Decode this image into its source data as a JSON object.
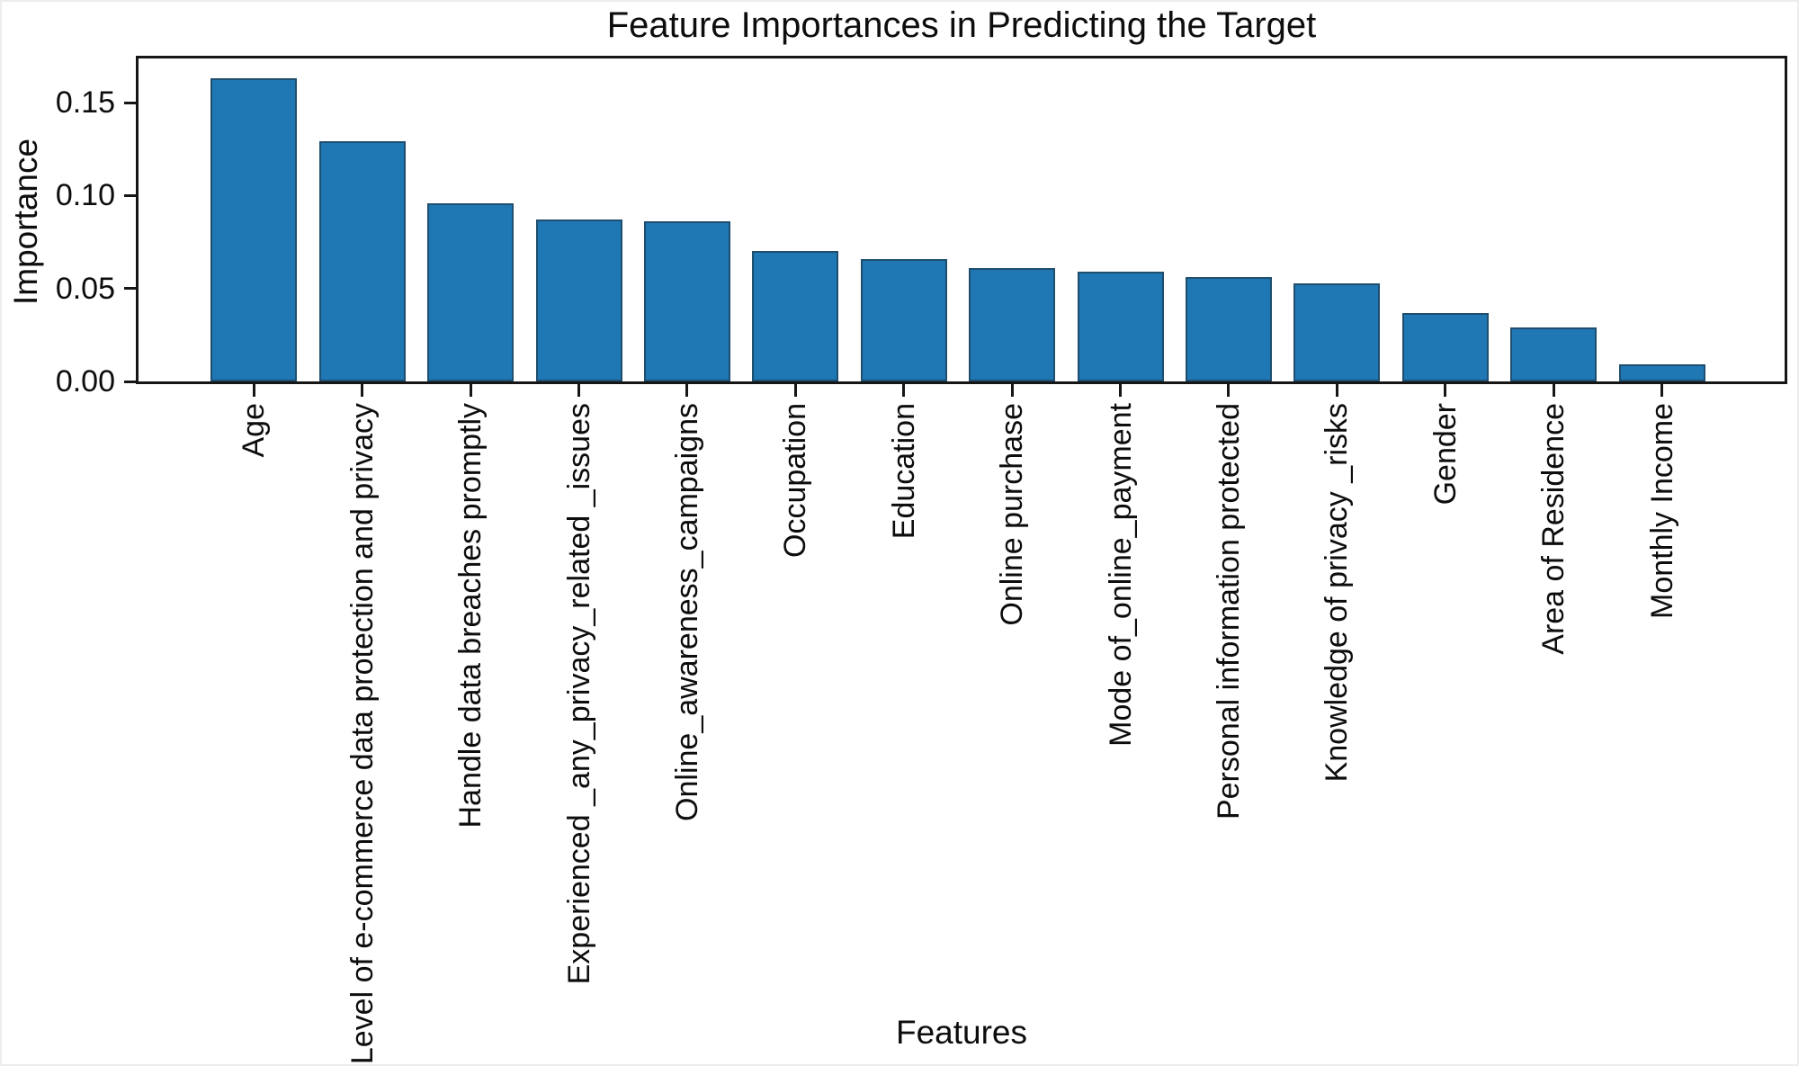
{
  "figure": {
    "title": "Feature Importances in Predicting the Target",
    "xlabel": "Features",
    "ylabel": "Importance"
  },
  "chart_data": {
    "type": "bar",
    "title": "Feature Importances in Predicting the Target",
    "xlabel": "Features",
    "ylabel": "Importance",
    "categories": [
      "Age",
      "Level of e-commerce data protection and privacy",
      "Handle data breaches promptly",
      "Experienced _any_privacy_related _issues",
      "Online_awareness_campaigns",
      "Occupation",
      "Education",
      "Online purchase",
      "Mode of_online_payment",
      "Personal information protected",
      "Knowledge of privacy _risks",
      "Gender",
      "Area of Residence",
      "Monthly Income"
    ],
    "values": [
      0.163,
      0.129,
      0.096,
      0.087,
      0.086,
      0.07,
      0.066,
      0.061,
      0.059,
      0.056,
      0.053,
      0.037,
      0.029,
      0.009
    ],
    "yticks": [
      0.0,
      0.05,
      0.1,
      0.15
    ],
    "ytick_labels": [
      "0.00",
      "0.05",
      "0.10",
      "0.15"
    ],
    "ylim": [
      0,
      0.1737
    ],
    "grid": false,
    "legend_position": "none",
    "bar_color": "#1f77b4",
    "bar_edge_color": "#1f4e6e",
    "axis_color": "#161616"
  }
}
